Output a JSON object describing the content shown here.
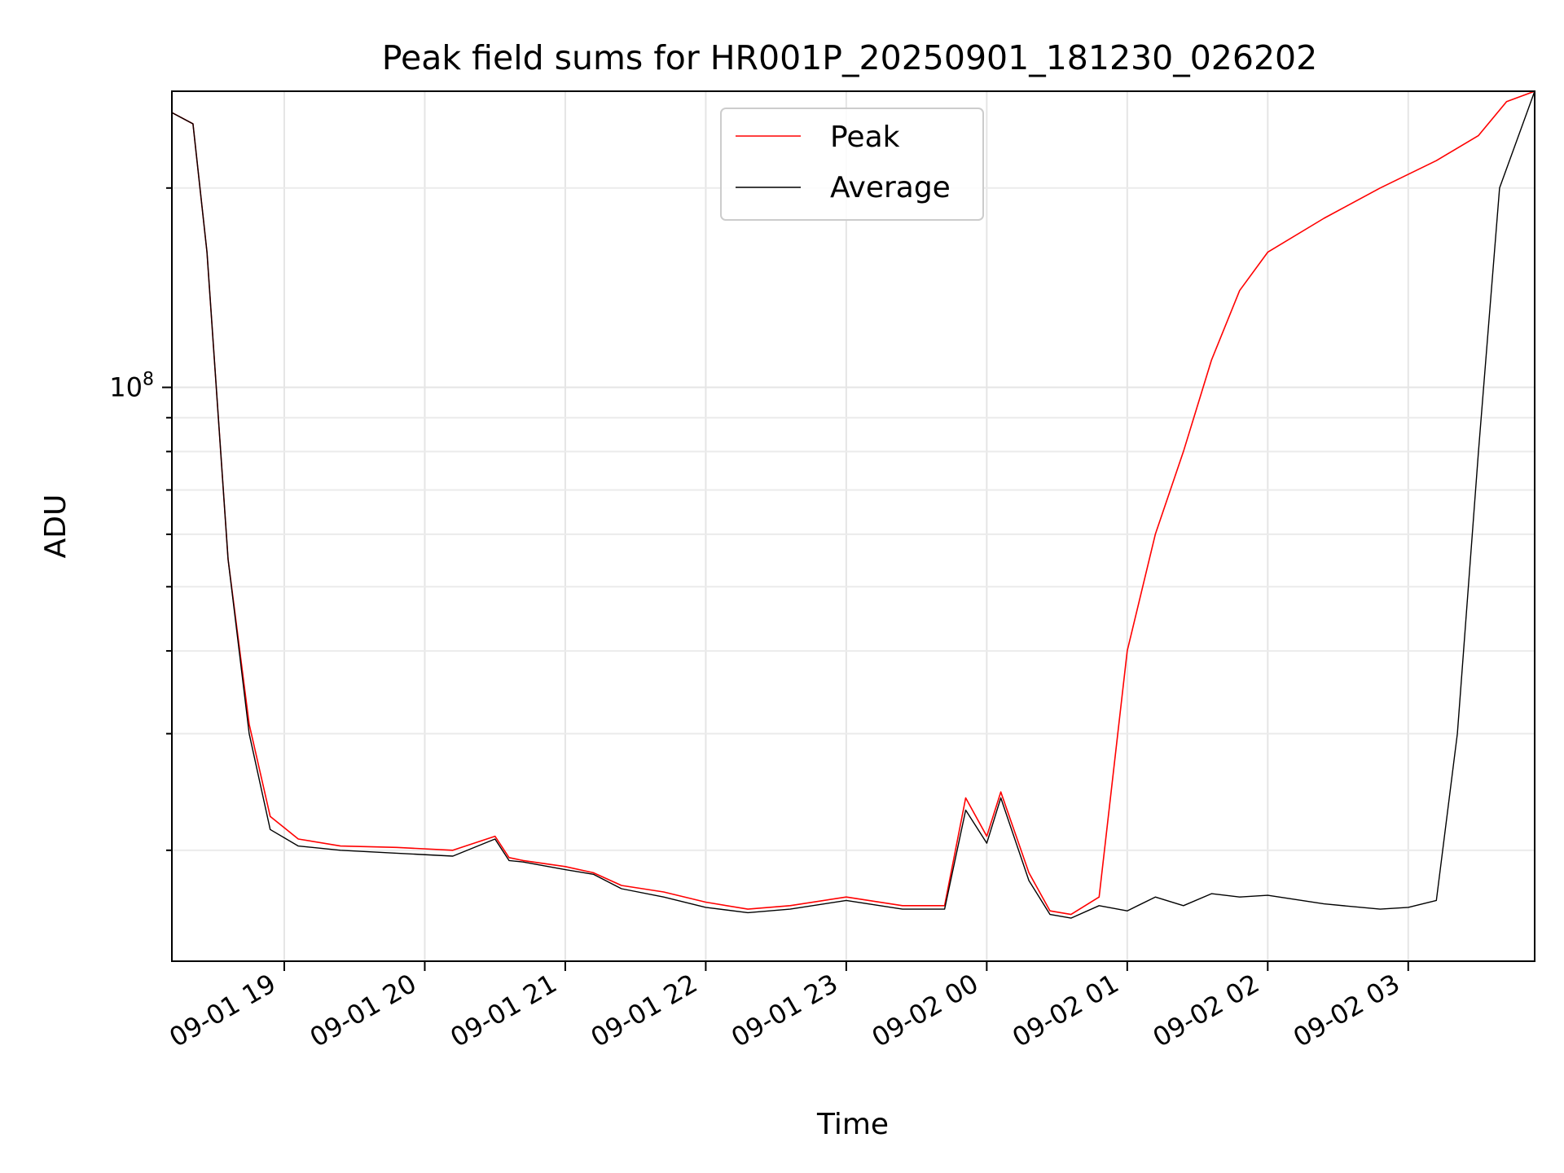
{
  "chart_data": {
    "type": "line",
    "title": "Peak field sums for HR001P_20250901_181230_026202",
    "xlabel": "Time",
    "ylabel": "ADU",
    "yscale": "log",
    "ytick_label": {
      "base": "10",
      "exp": "8"
    },
    "xlim_hours": [
      18.2,
      27.9
    ],
    "ylim": [
      13600000,
      280000000
    ],
    "grid": true,
    "legend_position": "upper center",
    "x_ticks": [
      {
        "label": "09-01 19",
        "hour": 19
      },
      {
        "label": "09-01 20",
        "hour": 20
      },
      {
        "label": "09-01 21",
        "hour": 21
      },
      {
        "label": "09-01 22",
        "hour": 22
      },
      {
        "label": "09-01 23",
        "hour": 23
      },
      {
        "label": "09-02 00",
        "hour": 24
      },
      {
        "label": "09-02 01",
        "hour": 25
      },
      {
        "label": "09-02 02",
        "hour": 26
      },
      {
        "label": "09-02 03",
        "hour": 27
      }
    ],
    "series": [
      {
        "name": "Peak",
        "color": "#ff0000",
        "x_hours": [
          18.2,
          18.35,
          18.45,
          18.6,
          18.75,
          18.9,
          19.1,
          19.4,
          19.8,
          20.2,
          20.5,
          20.6,
          20.7,
          21.0,
          21.2,
          21.4,
          21.7,
          22.0,
          22.3,
          22.6,
          23.0,
          23.4,
          23.7,
          23.85,
          24.0,
          24.1,
          24.3,
          24.45,
          24.6,
          24.8,
          25.0,
          25.2,
          25.4,
          25.6,
          25.8,
          26.0,
          26.4,
          26.8,
          27.2,
          27.5,
          27.7,
          27.9
        ],
        "values": [
          260000000,
          250000000,
          160000000,
          55000000,
          31000000,
          22500000,
          20800000,
          20300000,
          20200000,
          20000000,
          21000000,
          19500000,
          19300000,
          18900000,
          18500000,
          17700000,
          17300000,
          16700000,
          16300000,
          16500000,
          17000000,
          16500000,
          16500000,
          24000000,
          21000000,
          24500000,
          18500000,
          16200000,
          16000000,
          17000000,
          40000000,
          60000000,
          80000000,
          110000000,
          140000000,
          160000000,
          180000000,
          200000000,
          220000000,
          240000000,
          270000000,
          280000000
        ]
      },
      {
        "name": "Average",
        "color": "#000000",
        "x_hours": [
          18.2,
          18.35,
          18.45,
          18.6,
          18.75,
          18.9,
          19.1,
          19.4,
          19.8,
          20.2,
          20.5,
          20.6,
          20.7,
          21.0,
          21.2,
          21.4,
          21.7,
          22.0,
          22.3,
          22.6,
          23.0,
          23.4,
          23.7,
          23.85,
          24.0,
          24.1,
          24.3,
          24.45,
          24.6,
          24.8,
          25.0,
          25.2,
          25.4,
          25.6,
          25.8,
          26.0,
          26.4,
          26.8,
          27.0,
          27.2,
          27.35,
          27.5,
          27.65,
          27.9
        ],
        "values": [
          260000000,
          250000000,
          160000000,
          55000000,
          30000000,
          21500000,
          20300000,
          20000000,
          19800000,
          19600000,
          20800000,
          19300000,
          19200000,
          18700000,
          18400000,
          17500000,
          17000000,
          16400000,
          16100000,
          16300000,
          16800000,
          16300000,
          16300000,
          23000000,
          20500000,
          24000000,
          18000000,
          16000000,
          15800000,
          16500000,
          16200000,
          17000000,
          16500000,
          17200000,
          17000000,
          17100000,
          16600000,
          16300000,
          16400000,
          16800000,
          30000000,
          80000000,
          200000000,
          280000000
        ]
      }
    ]
  }
}
